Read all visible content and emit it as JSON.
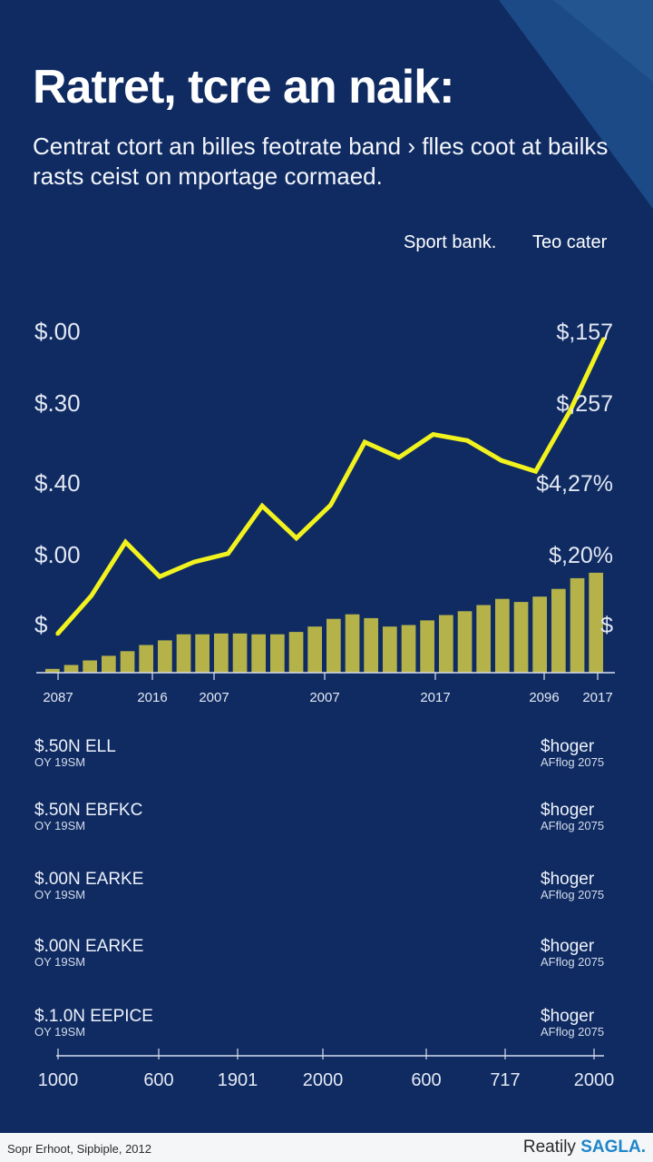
{
  "title": "Ratret, tcre an naik:",
  "subtitle": "Centrat ctort an billes feotrate band › flles coot at bailks rasts ceist on mportage cormaed.",
  "legend": [
    "Sport bank.",
    "Teo cater"
  ],
  "colors": {
    "background": "#0f2b62",
    "line": "#f2f21e",
    "bars": "#b5b24a",
    "footer_bg": "#f5f6f8",
    "brand": "#1e86c8"
  },
  "chart_data": {
    "type": "bar+line",
    "title": "Ratret, tcre an naik:",
    "y_left_ticks": [
      "$.00",
      "$.30",
      "$.40",
      "$.00",
      "$"
    ],
    "y_right_ticks": [
      "$,157",
      "$,257",
      "$4,27%",
      "$,20%",
      "$"
    ],
    "x_ticks": [
      "2087",
      "2016",
      "2007",
      "2007",
      "2017",
      "2096",
      "2017"
    ],
    "bars_series": {
      "name": "Sport bank.",
      "values": [
        0.5,
        1,
        1.6,
        2.2,
        2.8,
        3.6,
        4.2,
        5,
        5,
        5.1,
        5.1,
        5,
        5,
        5.3,
        6,
        7,
        7.6,
        7.1,
        6,
        6.2,
        6.8,
        7.5,
        8,
        8.8,
        9.6,
        9.2,
        9.9,
        10.9,
        12.3,
        13
      ]
    },
    "line_series": {
      "name": "Teo cater",
      "values": [
        5,
        10,
        17,
        12.5,
        14.4,
        15.5,
        21.7,
        17.5,
        21.8,
        30,
        28,
        31,
        30.2,
        27.6,
        26.2,
        34,
        43.5
      ]
    },
    "bottom_axis_ticks": [
      "1000",
      "600",
      "1901",
      "2000",
      "600",
      "717",
      "2000"
    ]
  },
  "rows": [
    {
      "label": "$.50N ELL",
      "sub": "OY 19SM",
      "right": "$hoger",
      "right_sub": "AFflog 2075"
    },
    {
      "label": "$.50N EBFKC",
      "sub": "OY 19SM",
      "right": "$hoger",
      "right_sub": "AFflog 2075"
    },
    {
      "label": "$.00N EARKE",
      "sub": "OY 19SM",
      "right": "$hoger",
      "right_sub": "AFflog 2075"
    },
    {
      "label": "$.00N EARKE",
      "sub": "OY 19SM",
      "right": "$hoger",
      "right_sub": "AFflog 2075"
    },
    {
      "label": "$.1.0N EEPICE",
      "sub": "OY 19SM",
      "right": "$hoger",
      "right_sub": "AFflog 2075"
    }
  ],
  "footer": {
    "left": "Sopr Erhoot, Sipbiple, 2012",
    "right_prefix": "Reatily",
    "right_brand": "SAGLA."
  }
}
